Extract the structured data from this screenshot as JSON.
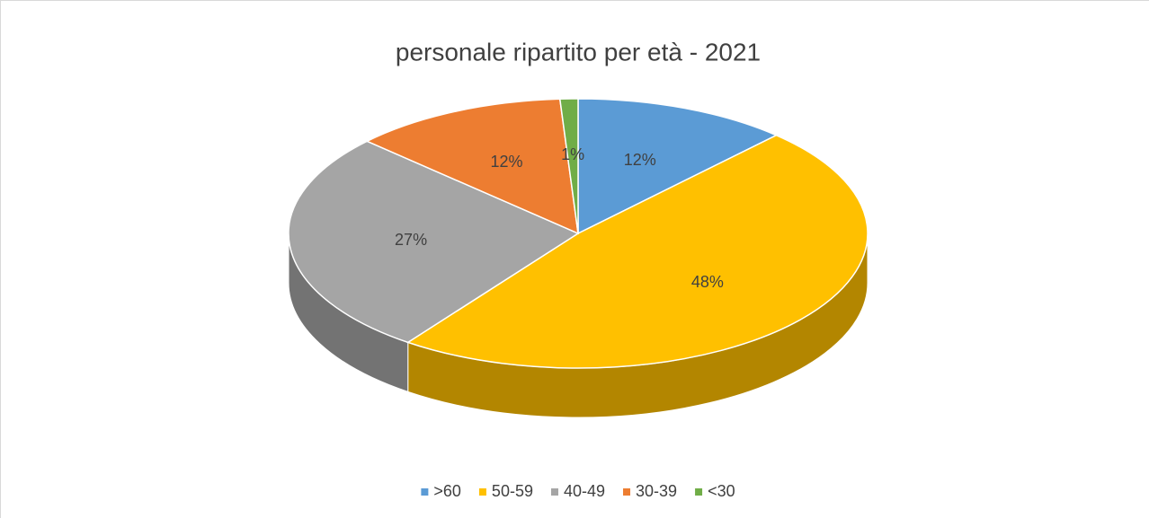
{
  "chart_data": {
    "type": "pie3d",
    "title": "personale ripartito per età - 2021",
    "categories": [
      ">60",
      "50-59",
      "40-49",
      "30-39",
      "<30"
    ],
    "values": [
      12,
      48,
      27,
      12,
      1
    ],
    "value_labels": [
      "12%",
      "48%",
      "27%",
      "12%",
      "1%"
    ],
    "colors": [
      "#5b9bd5",
      "#ffc000",
      "#a5a5a5",
      "#ed7d31",
      "#70ad47"
    ],
    "legend": "bottom"
  }
}
